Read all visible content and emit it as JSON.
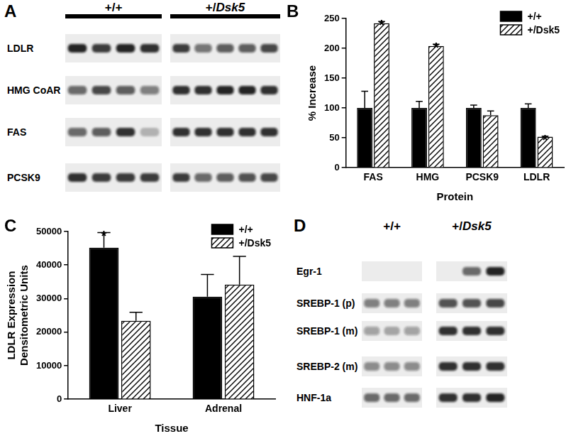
{
  "chart_data": [
    {
      "panel": "B",
      "type": "bar",
      "x_label": "Protein",
      "y_label": "% Increase",
      "categories": [
        "FAS",
        "HMG",
        "PCSK9",
        "LDLR"
      ],
      "series": [
        {
          "name": "+/+",
          "color": "#000000",
          "values": [
            100,
            100,
            100,
            100
          ],
          "errors": [
            28,
            11,
            5,
            7
          ]
        },
        {
          "name": "+/Dsk5",
          "color": "#ffffff",
          "values": [
            242,
            204,
            88,
            52
          ],
          "errors": [
            3,
            3,
            7,
            1
          ]
        }
      ],
      "annotations": [
        {
          "category": "FAS",
          "series": "+/Dsk5",
          "text": "*"
        },
        {
          "category": "HMG",
          "series": "+/Dsk5",
          "text": "*"
        },
        {
          "category": "LDLR",
          "series": "+/Dsk5",
          "text": "*"
        }
      ],
      "ylim": [
        0,
        250
      ],
      "yticks": [
        0,
        50,
        100,
        150,
        200,
        250
      ],
      "grid": false,
      "legend": "top-right"
    },
    {
      "panel": "C",
      "type": "bar",
      "x_label": "Tissue",
      "y_label": [
        "LDLR Expression",
        "Densitometric Units"
      ],
      "categories": [
        "Liver",
        "Adrenal"
      ],
      "series": [
        {
          "name": "+/+",
          "color": "#000000",
          "values": [
            45200,
            30600
          ],
          "errors": [
            4500,
            6600
          ]
        },
        {
          "name": "+/Dsk5",
          "color": "#ffffff",
          "values": [
            23400,
            34200
          ],
          "errors": [
            2500,
            8400
          ]
        }
      ],
      "annotations": [
        {
          "category": "Liver",
          "series": "+/+",
          "text": "*"
        }
      ],
      "ylim": [
        0,
        50000
      ],
      "yticks": [
        0,
        10000,
        20000,
        30000,
        40000,
        50000
      ],
      "grid": false,
      "legend": "top-right"
    }
  ],
  "blots": [
    {
      "panel": "A",
      "groups": [
        {
          "label": "+/+",
          "lanes": 4
        },
        {
          "label": "+/Dsk5",
          "lanes": 5
        }
      ],
      "rows": [
        {
          "label": "LDLR",
          "bands": [
            [
              0.9,
              0.8,
              0.9,
              0.85
            ],
            [
              0.8,
              0.55,
              0.65,
              0.65,
              0.75
            ]
          ]
        },
        {
          "label": "HMG CoAR",
          "bands": [
            [
              0.6,
              0.75,
              0.65,
              0.5
            ],
            [
              0.85,
              0.85,
              0.9,
              0.9,
              0.85
            ]
          ]
        },
        {
          "label": "FAS",
          "bands": [
            [
              0.6,
              0.65,
              0.85,
              0.25
            ],
            [
              0.85,
              0.85,
              0.85,
              0.85,
              0.85
            ]
          ]
        },
        {
          "label": "PCSK9",
          "bands": [
            [
              0.85,
              0.8,
              0.8,
              0.8
            ],
            [
              0.8,
              0.6,
              0.65,
              0.7,
              0.75
            ]
          ]
        }
      ]
    },
    {
      "panel": "D",
      "groups": [
        {
          "label": "+/+",
          "lanes": 3
        },
        {
          "label": "+/Dsk5",
          "lanes": 3
        }
      ],
      "rows": [
        {
          "label": "Egr-1",
          "bands": [
            [
              0,
              0,
              0
            ],
            [
              0,
              0.6,
              0.9
            ]
          ]
        },
        {
          "label": "SREBP-1 (p)",
          "bands": [
            [
              0.5,
              0.5,
              0.5
            ],
            [
              0.7,
              0.7,
              0.75
            ]
          ]
        },
        {
          "label": "SREBP-1 (m)",
          "bands": [
            [
              0.35,
              0.3,
              0.35
            ],
            [
              0.85,
              0.85,
              0.85
            ]
          ]
        },
        {
          "label": "SREBP-2 (m)",
          "bands": [
            [
              0.45,
              0.45,
              0.45
            ],
            [
              0.85,
              0.85,
              0.85
            ]
          ]
        },
        {
          "label": "HNF-1a",
          "bands": [
            [
              0.6,
              0.6,
              0.6
            ],
            [
              0.85,
              0.85,
              0.9
            ]
          ]
        }
      ]
    }
  ]
}
